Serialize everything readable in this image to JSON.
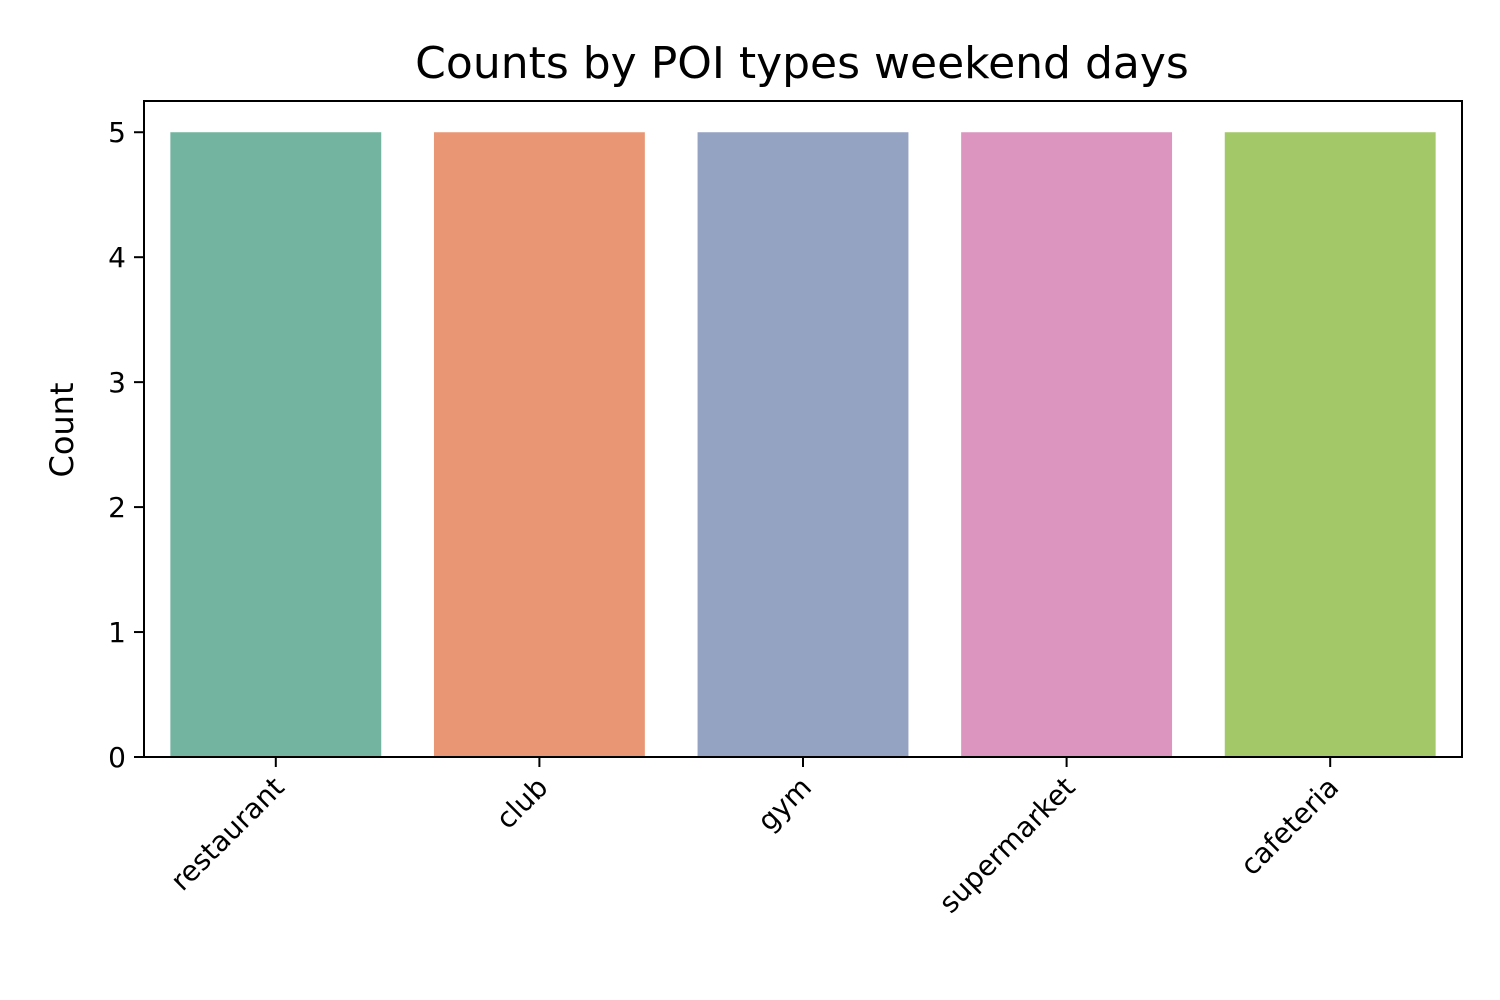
{
  "chart_data": {
    "type": "bar",
    "title": "Counts by POI types weekend days",
    "xlabel": "",
    "ylabel": "Count",
    "categories": [
      "restaurant",
      "club",
      "gym",
      "supermarket",
      "cafeteria"
    ],
    "values": [
      5,
      5,
      5,
      5,
      5
    ],
    "colors": [
      "#73b4a0",
      "#e89674",
      "#94a3c2",
      "#db95bf",
      "#a2c867"
    ],
    "ylim": [
      0,
      5.25
    ],
    "yticks": [
      0,
      1,
      2,
      3,
      4,
      5
    ],
    "grid": false,
    "legend": "none"
  }
}
